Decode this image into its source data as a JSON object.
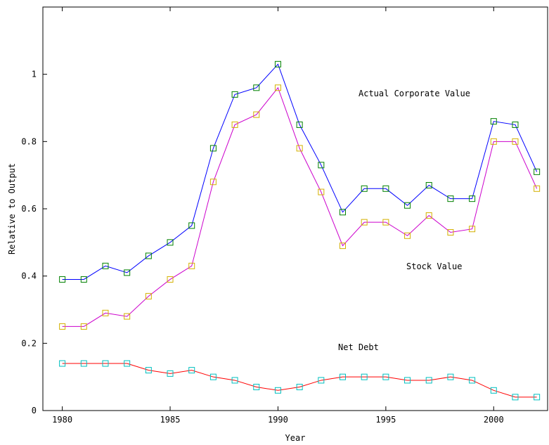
{
  "chart_data": {
    "type": "line",
    "title": "",
    "xlabel": "Year",
    "ylabel": "Relative to Output",
    "xlim": [
      1979.1,
      2002.5
    ],
    "ylim": [
      0,
      1.2
    ],
    "xticks": [
      1980,
      1985,
      1990,
      1995,
      2000
    ],
    "xtick_labels": [
      "1980",
      "1985",
      "1990",
      "1995",
      "2000"
    ],
    "yticks": [
      0,
      0.2,
      0.4,
      0.6,
      0.8,
      1.0
    ],
    "ytick_labels": [
      "0",
      "0.2",
      "0.4",
      "0.6",
      "0.8",
      "1"
    ],
    "grid": false,
    "x": [
      1980,
      1981,
      1982,
      1983,
      1984,
      1985,
      1986,
      1987,
      1988,
      1989,
      1990,
      1991,
      1992,
      1993,
      1994,
      1995,
      1996,
      1997,
      1998,
      1999,
      2000,
      2001,
      2002
    ],
    "series": [
      {
        "label": "Actual Corporate Value",
        "line_color": "#0000ff",
        "marker_color": "#008000",
        "values": [
          0.39,
          0.39,
          0.43,
          0.41,
          0.46,
          0.5,
          0.55,
          0.78,
          0.94,
          0.96,
          1.03,
          0.85,
          0.73,
          0.59,
          0.66,
          0.66,
          0.61,
          0.67,
          0.63,
          0.63,
          0.86,
          0.85,
          0.71
        ]
      },
      {
        "label": "Stock Value",
        "line_color": "#cc00cc",
        "marker_color": "#d4b000",
        "values": [
          0.25,
          0.25,
          0.29,
          0.28,
          0.34,
          0.39,
          0.43,
          0.68,
          0.85,
          0.88,
          0.96,
          0.78,
          0.65,
          0.49,
          0.56,
          0.56,
          0.52,
          0.58,
          0.53,
          0.54,
          0.8,
          0.8,
          0.66
        ]
      },
      {
        "label": "Net Debt",
        "line_color": "#ff0000",
        "marker_color": "#00bfbf",
        "values": [
          0.14,
          0.14,
          0.14,
          0.14,
          0.12,
          0.11,
          0.12,
          0.1,
          0.09,
          0.07,
          0.06,
          0.07,
          0.09,
          0.1,
          0.1,
          0.1,
          0.09,
          0.09,
          0.1,
          0.09,
          0.06,
          0.04,
          0.04
        ]
      }
    ]
  }
}
